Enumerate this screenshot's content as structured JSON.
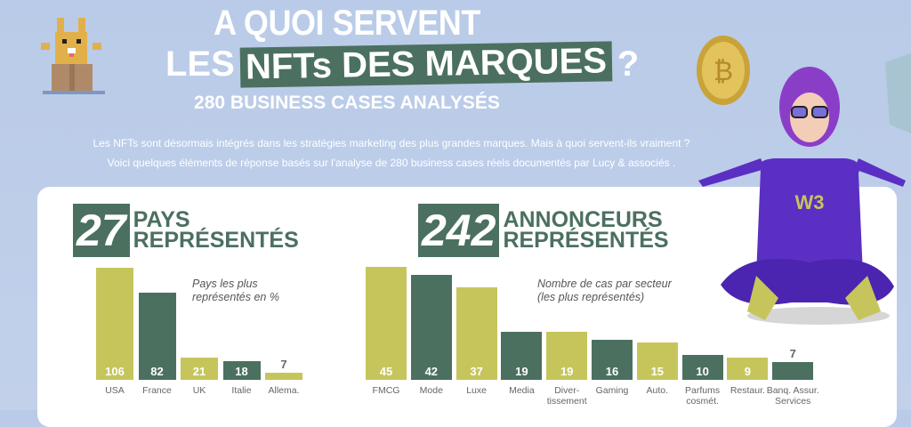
{
  "header": {
    "title_line1": "A QUOI SERVENT",
    "title_line2_pre": "LES",
    "title_line2_highlight": "NFTs DES MARQUES",
    "title_line2_post": "?",
    "subtitle": "280 BUSINESS CASES ANALYSÉS",
    "intro_line1": "Les NFTs sont désormais intégrés dans les stratégies marketing des plus grandes marques. Mais à quoi servent-ils vraiment ?",
    "intro_line2": "Voici quelques éléments de réponse basés sur l'analyse de 280 business cases réels documentés par Lucy & associés ."
  },
  "colors": {
    "dark_green": "#4b7060",
    "olive": "#c6c55c",
    "background": "#bccbe8",
    "purple": "#5b2fc4"
  },
  "chart_data": [
    {
      "type": "bar",
      "big_number": "27",
      "heading_line1": "PAYS",
      "heading_line2": "REPRÉSENTÉS",
      "note_line1": "Pays les plus",
      "note_line2": "représentés en %",
      "categories": [
        "USA",
        "France",
        "UK",
        "Italie",
        "Allema."
      ],
      "values": [
        106,
        82,
        21,
        18,
        7
      ],
      "value_labels": [
        "106",
        "82",
        "21",
        "18",
        "7"
      ],
      "bar_colors": [
        "olive",
        "dark_green",
        "olive",
        "dark_green",
        "olive"
      ]
    },
    {
      "type": "bar",
      "big_number": "242",
      "heading_line1": "ANNONCEURS",
      "heading_line2": "REPRÉSENTÉS",
      "note_line1": "Nombre de cas par secteur",
      "note_line2": "(les plus représentés)",
      "categories": [
        "FMCG",
        "Mode",
        "Luxe",
        "Media",
        "Diver-\ntissement",
        "Gaming",
        "Auto.",
        "Parfums\ncosmét.",
        "Restaur.",
        "Banq. Assur.\nServices"
      ],
      "values": [
        45,
        42,
        37,
        19,
        19,
        16,
        15,
        10,
        9,
        7
      ],
      "value_labels": [
        "45",
        "42",
        "37",
        "19",
        "19",
        "16",
        "15",
        "10",
        "9",
        "7"
      ],
      "bar_colors": [
        "olive",
        "dark_green",
        "olive",
        "dark_green",
        "olive",
        "dark_green",
        "olive",
        "dark_green",
        "olive",
        "dark_green"
      ]
    }
  ]
}
